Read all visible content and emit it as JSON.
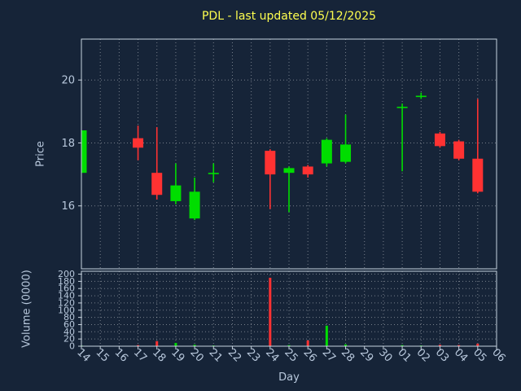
{
  "colors": {
    "background": "#162438",
    "text": "#b8c8dc",
    "title": "#ffff4f",
    "spine": "#c7d3df",
    "grid": "rgba(255,255,255,0.42)",
    "up": "#00dd00",
    "down": "#ff3232"
  },
  "chart_data": {
    "type": "candlestick",
    "title": "PDL - last updated 05/12/2025",
    "xlabel": "Day",
    "grid": true,
    "categories": [
      "14",
      "15",
      "16",
      "17",
      "18",
      "19",
      "20",
      "21",
      "22",
      "23",
      "24",
      "25",
      "26",
      "27",
      "28",
      "29",
      "30",
      "01",
      "02",
      "03",
      "04",
      "05",
      "06"
    ],
    "panels": [
      {
        "name": "price",
        "ylabel": "Price",
        "ylim": [
          14.0,
          21.3
        ],
        "yticks": [
          16,
          18,
          20
        ]
      },
      {
        "name": "volume",
        "ylabel": "Volume (0000)",
        "ylim": [
          0,
          208
        ],
        "yticks": [
          0,
          20,
          40,
          60,
          80,
          100,
          120,
          140,
          160,
          180,
          200
        ]
      }
    ],
    "ohlcv": [
      {
        "day": "14",
        "open": 17.05,
        "high": 18.4,
        "low": 17.05,
        "close": 18.4,
        "volume": 2
      },
      {
        "day": "17",
        "open": 18.15,
        "high": 18.55,
        "low": 17.45,
        "close": 17.85,
        "volume": 3
      },
      {
        "day": "18",
        "open": 17.05,
        "high": 18.5,
        "low": 16.2,
        "close": 16.35,
        "volume": 14
      },
      {
        "day": "19",
        "open": 16.15,
        "high": 17.35,
        "low": 16.05,
        "close": 16.65,
        "volume": 9
      },
      {
        "day": "20",
        "open": 15.6,
        "high": 16.9,
        "low": 15.55,
        "close": 16.45,
        "volume": 4
      },
      {
        "day": "21",
        "open": 17.05,
        "high": 17.35,
        "low": 16.75,
        "close": 17.05,
        "volume": 2
      },
      {
        "day": "24",
        "open": 17.75,
        "high": 17.8,
        "low": 15.9,
        "close": 17.0,
        "volume": 190
      },
      {
        "day": "25",
        "open": 17.05,
        "high": 17.25,
        "low": 15.8,
        "close": 17.2,
        "volume": 3
      },
      {
        "day": "26",
        "open": 17.25,
        "high": 17.3,
        "low": 16.9,
        "close": 17.0,
        "volume": 16
      },
      {
        "day": "27",
        "open": 17.35,
        "high": 18.15,
        "low": 17.25,
        "close": 18.1,
        "volume": 57
      },
      {
        "day": "28",
        "open": 17.4,
        "high": 18.9,
        "low": 17.35,
        "close": 17.95,
        "volume": 5
      },
      {
        "day": "01",
        "open": 19.15,
        "high": 19.25,
        "low": 17.1,
        "close": 19.15,
        "volume": 3
      },
      {
        "day": "02",
        "open": 19.5,
        "high": 19.6,
        "low": 19.4,
        "close": 19.5,
        "volume": 2
      },
      {
        "day": "03",
        "open": 18.3,
        "high": 18.35,
        "low": 17.85,
        "close": 17.9,
        "volume": 4
      },
      {
        "day": "04",
        "open": 18.05,
        "high": 18.1,
        "low": 17.45,
        "close": 17.5,
        "volume": 3
      },
      {
        "day": "05",
        "open": 17.5,
        "high": 19.4,
        "low": 16.4,
        "close": 16.45,
        "volume": 7
      }
    ]
  }
}
